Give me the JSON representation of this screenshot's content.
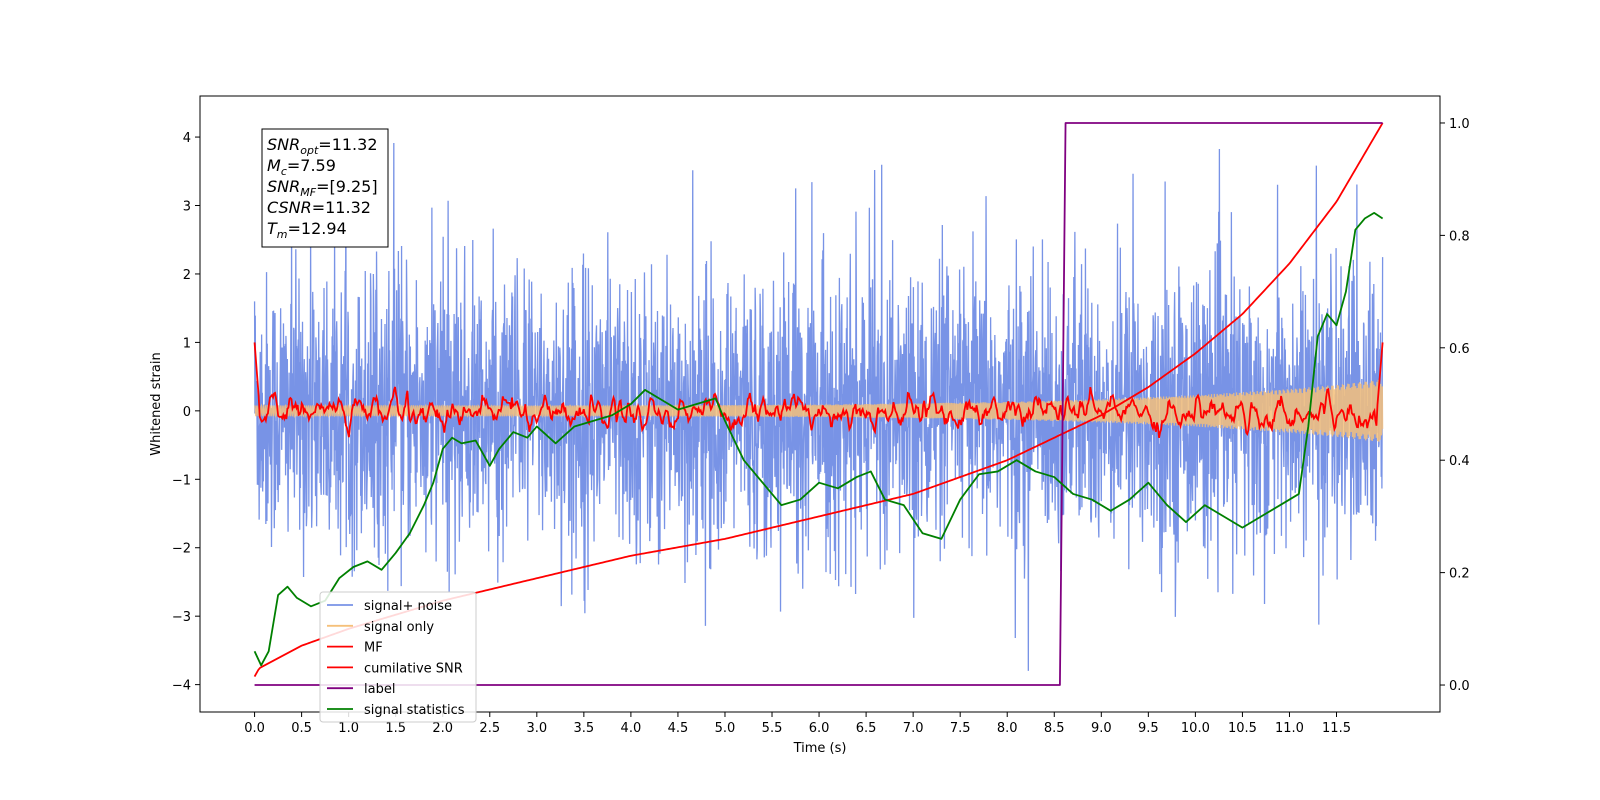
{
  "chart_data": {
    "type": "line",
    "title": "",
    "xlabel": "Time (s)",
    "ylabel_left": "Whitened strain",
    "ylabel_right": "",
    "xlim": [
      -0.58,
      12.6
    ],
    "ylim_left": [
      -4.4,
      4.6
    ],
    "ylim_right": [
      -0.048,
      1.048
    ],
    "x_ticks": [
      0.0,
      0.5,
      1.0,
      1.5,
      2.0,
      2.5,
      3.0,
      3.5,
      4.0,
      4.5,
      5.0,
      5.5,
      6.0,
      6.5,
      7.0,
      7.5,
      8.0,
      8.5,
      9.0,
      9.5,
      10.0,
      10.5,
      11.0,
      11.5
    ],
    "x_tick_labels": [
      "0.0",
      "0.5",
      "1.0",
      "1.5",
      "2.0",
      "2.5",
      "3.0",
      "3.5",
      "4.0",
      "4.5",
      "5.0",
      "5.5",
      "6.0",
      "6.5",
      "7.0",
      "7.5",
      "8.0",
      "8.5",
      "9.0",
      "9.5",
      "10.0",
      "10.5",
      "11.0",
      "11.5"
    ],
    "y_left_ticks": [
      4,
      3,
      2,
      1,
      0,
      -1,
      -2,
      -3,
      -4
    ],
    "y_left_tick_labels": [
      "4",
      "3",
      "2",
      "1",
      "0",
      "−1",
      "−2",
      "−3",
      "−4"
    ],
    "y_right_ticks": [
      1.0,
      0.8,
      0.6,
      0.4,
      0.2,
      0.0
    ],
    "y_right_tick_labels": [
      "1.0",
      "0.8",
      "0.6",
      "0.4",
      "0.2",
      "0.0"
    ],
    "grid": false,
    "legend_position": "lower-left",
    "annotation": {
      "lines": [
        {
          "base": "SNR",
          "sub": "opt",
          "rest": "=11.32"
        },
        {
          "base": "M",
          "sub": "c",
          "rest": "=7.59"
        },
        {
          "base": "SNR",
          "sub": "MF",
          "rest": "=[9.25]"
        },
        {
          "base": "CSNR",
          "sub": "",
          "rest": "=11.32"
        },
        {
          "base": "T",
          "sub": "m",
          "rest": "=12.94"
        }
      ]
    },
    "series": [
      {
        "name": "signal+ noise",
        "color": "#7893e6",
        "axis": "left",
        "kind": "noise",
        "description_values": {
          "x_start": 0.0,
          "x_end": 11.99,
          "typical_min": -2.6,
          "typical_max": 2.7,
          "peak_max": 4.17,
          "peak_min": -3.8
        }
      },
      {
        "name": "signal only",
        "color": "#f5c07a",
        "axis": "left",
        "kind": "chirp",
        "x_start": 0.0,
        "x_end": 11.99,
        "envelope_x": [
          0.0,
          2.0,
          4.0,
          6.0,
          8.0,
          9.0,
          10.0,
          11.0,
          11.5,
          11.99
        ],
        "envelope_amp": [
          0.08,
          0.08,
          0.08,
          0.09,
          0.13,
          0.17,
          0.23,
          0.32,
          0.38,
          0.46
        ]
      },
      {
        "name": "MF",
        "color": "#ff0000",
        "axis": "left",
        "kind": "mf",
        "start_value": 1.0,
        "end_value": 1.0,
        "typical_amplitude": 0.15
      },
      {
        "name": "cumilative SNR",
        "color": "#ff0000",
        "axis": "right",
        "x": [
          0.0,
          0.05,
          0.5,
          1.0,
          2.0,
          3.0,
          4.0,
          5.0,
          6.0,
          7.0,
          8.0,
          8.5,
          9.0,
          9.5,
          10.0,
          10.5,
          11.0,
          11.5,
          11.99
        ],
        "y": [
          0.015,
          0.03,
          0.07,
          0.1,
          0.15,
          0.19,
          0.23,
          0.26,
          0.3,
          0.34,
          0.4,
          0.44,
          0.48,
          0.53,
          0.59,
          0.66,
          0.75,
          0.86,
          1.0
        ]
      },
      {
        "name": "label",
        "color": "#800080",
        "axis": "right",
        "x": [
          0.0,
          8.56,
          8.62,
          11.99
        ],
        "y": [
          0.0,
          0.0,
          1.0,
          1.0
        ]
      },
      {
        "name": "signal statistics",
        "color": "#008000",
        "axis": "right",
        "x": [
          0.0,
          0.07,
          0.15,
          0.25,
          0.35,
          0.45,
          0.6,
          0.75,
          0.9,
          1.05,
          1.2,
          1.35,
          1.5,
          1.65,
          1.8,
          1.9,
          2.0,
          2.1,
          2.2,
          2.35,
          2.5,
          2.6,
          2.75,
          2.9,
          3.0,
          3.2,
          3.4,
          3.6,
          3.8,
          4.0,
          4.15,
          4.3,
          4.5,
          4.7,
          4.9,
          5.0,
          5.2,
          5.4,
          5.6,
          5.8,
          6.0,
          6.2,
          6.4,
          6.55,
          6.7,
          6.9,
          7.1,
          7.3,
          7.5,
          7.7,
          7.9,
          8.1,
          8.3,
          8.5,
          8.7,
          8.9,
          9.1,
          9.3,
          9.5,
          9.7,
          9.9,
          10.1,
          10.3,
          10.5,
          10.7,
          10.9,
          11.0,
          11.1,
          11.2,
          11.3,
          11.4,
          11.5,
          11.6,
          11.7,
          11.8,
          11.9,
          11.99
        ],
        "y": [
          0.06,
          0.035,
          0.06,
          0.16,
          0.175,
          0.155,
          0.14,
          0.15,
          0.19,
          0.21,
          0.22,
          0.205,
          0.235,
          0.27,
          0.32,
          0.36,
          0.42,
          0.44,
          0.43,
          0.435,
          0.39,
          0.42,
          0.45,
          0.44,
          0.46,
          0.43,
          0.46,
          0.47,
          0.48,
          0.5,
          0.525,
          0.51,
          0.49,
          0.5,
          0.51,
          0.47,
          0.4,
          0.36,
          0.32,
          0.33,
          0.36,
          0.35,
          0.37,
          0.38,
          0.33,
          0.32,
          0.27,
          0.26,
          0.33,
          0.375,
          0.38,
          0.4,
          0.38,
          0.37,
          0.34,
          0.33,
          0.31,
          0.33,
          0.36,
          0.32,
          0.29,
          0.32,
          0.3,
          0.28,
          0.3,
          0.32,
          0.33,
          0.34,
          0.46,
          0.62,
          0.66,
          0.64,
          0.7,
          0.81,
          0.83,
          0.84,
          0.83
        ]
      }
    ]
  }
}
